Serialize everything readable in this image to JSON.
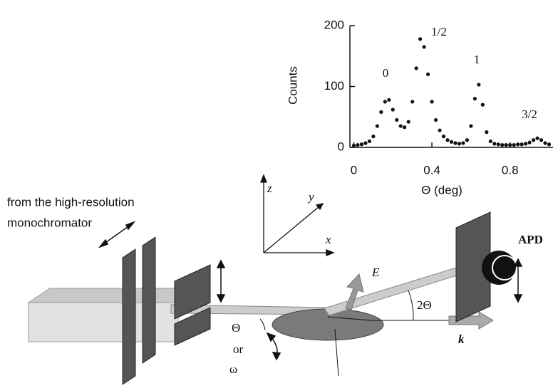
{
  "chart_data": {
    "type": "scatter",
    "xlabel": "Θ (deg)",
    "ylabel": "Counts",
    "annotations": [
      "0",
      "1/2",
      "1",
      "3/2"
    ],
    "x": [
      0,
      0.02,
      0.04,
      0.06,
      0.08,
      0.1,
      0.12,
      0.14,
      0.16,
      0.18,
      0.2,
      0.22,
      0.24,
      0.26,
      0.28,
      0.3,
      0.32,
      0.34,
      0.36,
      0.38,
      0.4,
      0.42,
      0.44,
      0.46,
      0.48,
      0.5,
      0.52,
      0.54,
      0.56,
      0.58,
      0.6,
      0.62,
      0.64,
      0.66,
      0.68,
      0.7,
      0.72,
      0.74,
      0.76,
      0.78,
      0.8,
      0.82,
      0.84,
      0.86,
      0.88,
      0.9,
      0.92,
      0.94,
      0.96,
      0.98,
      1.0
    ],
    "values": [
      3,
      4,
      5,
      7,
      10,
      18,
      35,
      58,
      75,
      78,
      62,
      45,
      35,
      33,
      42,
      75,
      130,
      178,
      165,
      120,
      75,
      45,
      28,
      18,
      12,
      9,
      7,
      6,
      7,
      12,
      35,
      80,
      103,
      70,
      25,
      10,
      6,
      5,
      4,
      4,
      4,
      4,
      5,
      5,
      6,
      8,
      12,
      15,
      12,
      7,
      5
    ],
    "color": "#111111",
    "xlim": [
      -0.02,
      1.02
    ],
    "ylim": [
      0,
      200
    ],
    "xticks": [
      0,
      0.4,
      0.8
    ],
    "yticks": [
      0,
      100,
      200
    ]
  },
  "diagram": {
    "source_lines": [
      "from the high-resolution",
      "monochromator"
    ],
    "axes": {
      "z": "z",
      "y": "y",
      "x": "x"
    },
    "E": "E",
    "two_theta": "2Θ",
    "theta": "Θ",
    "or": "or",
    "omega": "ω",
    "k": "k",
    "detector": "APD"
  }
}
